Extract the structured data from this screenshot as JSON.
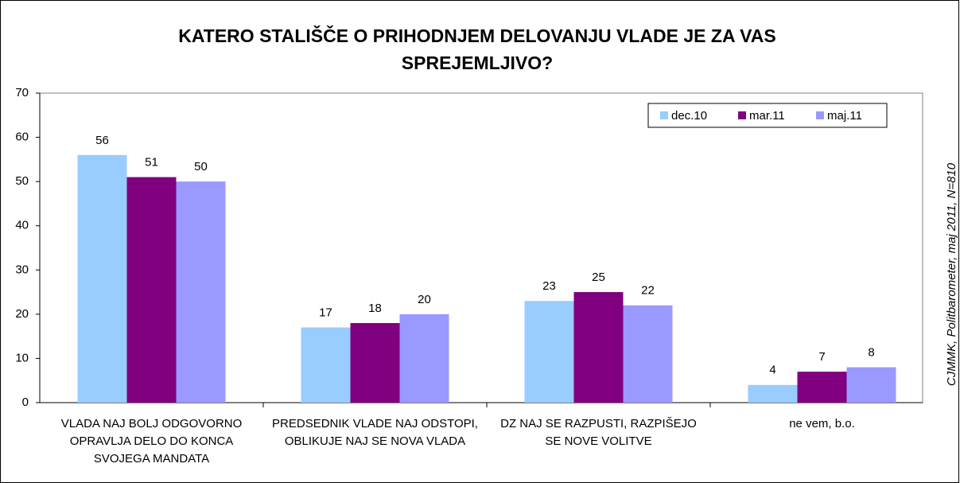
{
  "chart_data": {
    "type": "bar",
    "title": "KATERO STALIŠČE O PRIHODNJEM DELOVANJU VLADE JE ZA VAS SPREJEMLJIVO?",
    "source": "CJMMK, Politbarometer, maj 2011, N=810",
    "categories": [
      "VLADA NAJ BOLJ ODGOVORNO OPRAVLJA DELO DO KONCA SVOJEGA MANDATA",
      "PREDSEDNIK VLADE NAJ ODSTOPI, OBLIKUJE NAJ SE NOVA VLADA",
      "DZ NAJ SE RAZPUSTI, RAZPIŠEJO SE NOVE VOLITVE",
      "ne vem, b.o."
    ],
    "series": [
      {
        "name": "dec.10",
        "color": "#99ccff",
        "values": [
          56,
          17,
          23,
          4
        ]
      },
      {
        "name": "mar.11",
        "color": "#800080",
        "values": [
          51,
          18,
          25,
          7
        ]
      },
      {
        "name": "maj.11",
        "color": "#9999ff",
        "values": [
          50,
          20,
          22,
          8
        ]
      }
    ],
    "ylim": [
      0,
      70
    ],
    "yticks": [
      0,
      10,
      20,
      30,
      40,
      50,
      60,
      70
    ],
    "grid": false,
    "legend": "top-right"
  }
}
